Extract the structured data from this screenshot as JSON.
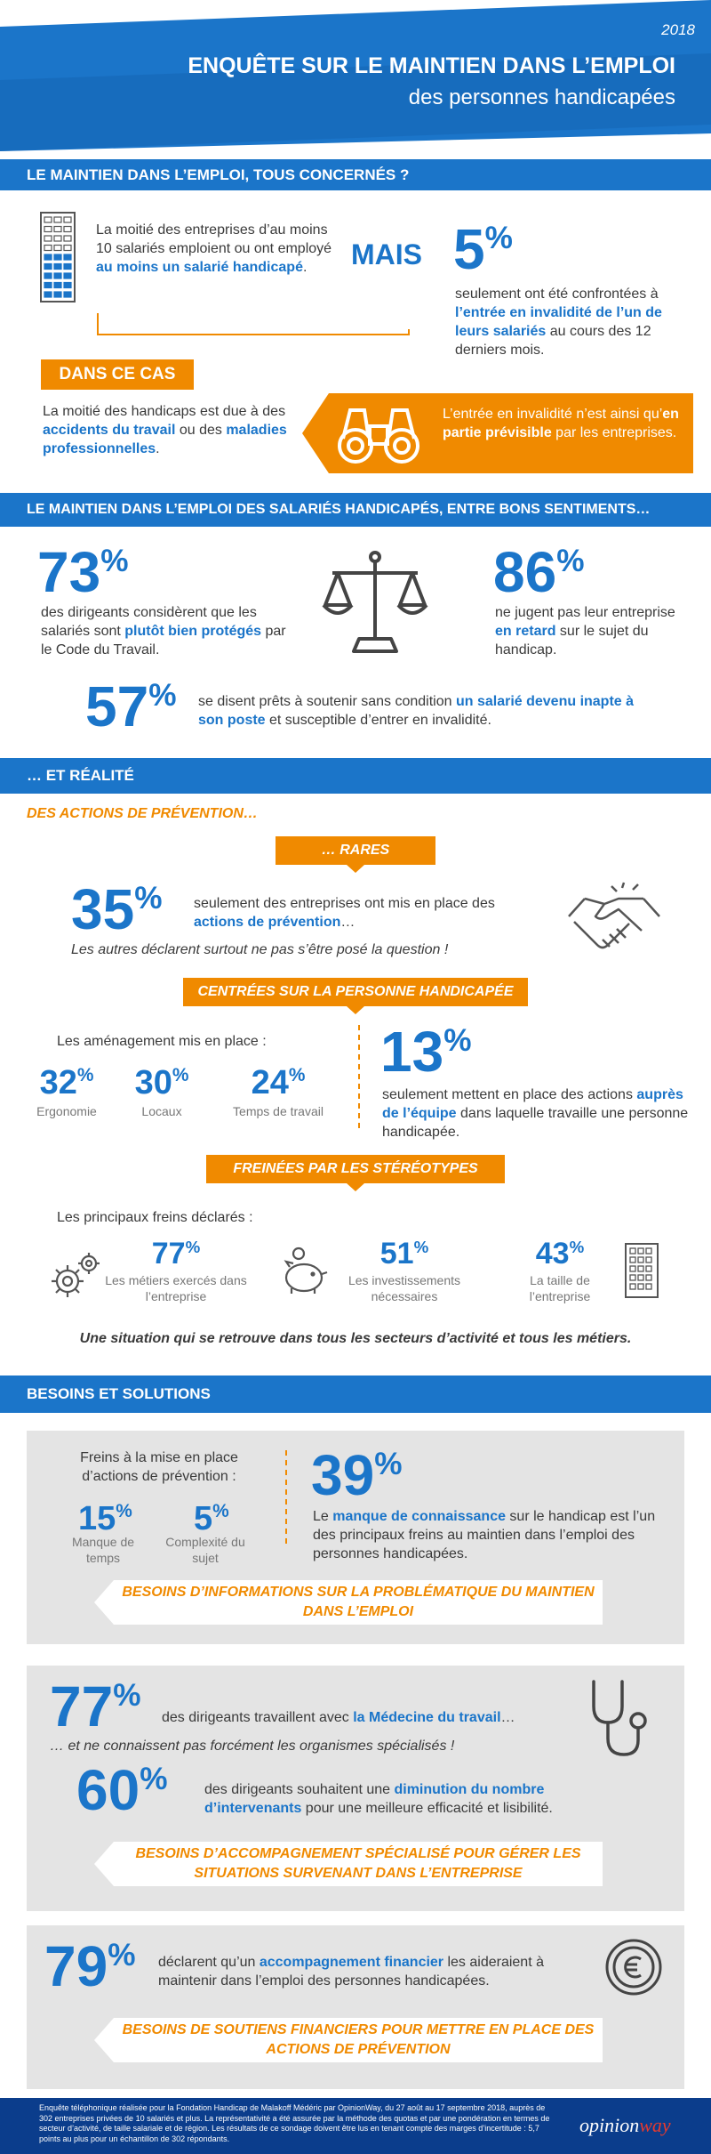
{
  "header": {
    "year": "2018",
    "title_line1": "ENQUÊTE SUR LE MAINTIEN DANS L’EMPLOI",
    "title_line2": "des personnes handicapées"
  },
  "section1": {
    "heading": "LE MAINTIEN DANS L’EMPLOI, TOUS CONCERNÉS ?",
    "stat_left_text1": "La moitié des entreprises d’au moins 10 salariés emploient ou ont employé ",
    "stat_left_highlight": "au moins un salarié handicapé",
    "stat_left_end": ".",
    "mais": "MAIS",
    "pct5": "5",
    "pct5_text1": "seulement ont été confrontées à ",
    "pct5_highlight": "l’entrée en invalidité de l’un de leurs salariés",
    "pct5_text2": " au cours des 12 derniers mois.",
    "dans_ce_cas": "DANS CE CAS",
    "handicap_text1": "La moitié des handicaps est due à des ",
    "handicap_h1": "accidents du travail",
    "handicap_text2": " ou des ",
    "handicap_h2": "maladies professionnelles",
    "handicap_end": ".",
    "orange_text1": "L’entrée en invalidité n’est ainsi qu’",
    "orange_highlight": "en partie prévisible",
    "orange_text2": " par les entreprises."
  },
  "section2": {
    "heading": "LE MAINTIEN DANS L’EMPLOI DES SALARIÉS HANDICAPÉS, ENTRE BONS SENTIMENTS…",
    "pct73": "73",
    "pct73_text1": "des dirigeants considèrent que les salariés sont ",
    "pct73_highlight": "plutôt bien protégés",
    "pct73_text2": " par le Code du Travail.",
    "pct86": "86",
    "pct86_text1": "ne jugent pas leur entreprise ",
    "pct86_highlight": "en retard",
    "pct86_text2": " sur le sujet du handicap.",
    "pct57": "57",
    "pct57_text1": "se disent prêts à soutenir sans condition ",
    "pct57_highlight": "un salarié devenu inapte à son poste",
    "pct57_text2": " et susceptible d’entrer en invalidité."
  },
  "section3": {
    "heading": "… ET RÉALITÉ",
    "subheading": "DES ACTIONS DE PRÉVENTION…",
    "rares": "… RARES",
    "pct35": "35",
    "pct35_text1": "seulement des entreprises ont mis en place des ",
    "pct35_highlight": "actions de prévention",
    "pct35_text2": "…",
    "pct35_note": "Les autres déclarent surtout ne pas s’être posé la question !",
    "centrees": "CENTRÉES SUR LA PERSONNE HANDICAPÉE",
    "amenagements_label": "Les aménagement mis en place :",
    "am": [
      {
        "pct": "32",
        "label": "Ergonomie"
      },
      {
        "pct": "30",
        "label": "Locaux"
      },
      {
        "pct": "24",
        "label": "Temps de travail"
      }
    ],
    "pct13": "13",
    "pct13_text1": "seulement mettent en place des actions ",
    "pct13_highlight": "auprès de l’équipe",
    "pct13_text2": " dans laquelle travaille une personne handicapée.",
    "freinees": "FREINÉES PAR LES STÉRÉOTYPES",
    "freins_label": "Les principaux freins déclarés :",
    "freins": [
      {
        "pct": "77",
        "label": "Les métiers exercés dans l’entreprise"
      },
      {
        "pct": "51",
        "label": "Les investissements nécessaires"
      },
      {
        "pct": "43",
        "label": "La taille de l’entreprise"
      }
    ],
    "conclusion": "Une situation qui se retrouve dans tous les secteurs d’activité et tous les métiers."
  },
  "section4": {
    "heading": "BESOINS ET SOLUTIONS",
    "freins_title": "Freins à la mise en place d’actions de prévention :",
    "f1_pct": "15",
    "f1_label": "Manque de temps",
    "f2_pct": "5",
    "f2_label": "Complexité du sujet",
    "pct39": "39",
    "pct39_text1": "Le ",
    "pct39_highlight": "manque de connaissance",
    "pct39_text2": " sur le handicap est l’un des principaux freins au maintien dans l’emploi des personnes handicapées.",
    "banner1": "BESOINS D’INFORMATIONS SUR LA PROBLÉMATIQUE DU MAINTIEN DANS L’EMPLOI",
    "pct77": "77",
    "pct77_text1": "des dirigeants travaillent avec ",
    "pct77_highlight": "la Médecine du travail",
    "pct77_text2": "…",
    "pct77_note": "… et ne connaissent pas forcément les organismes spécialisés !",
    "pct60": "60",
    "pct60_text1": "des dirigeants souhaitent une ",
    "pct60_highlight": "diminution du nombre d’intervenants",
    "pct60_text2": " pour une meilleure efficacité et lisibilité.",
    "banner2": "BESOINS D’ACCOMPAGNEMENT SPÉCIALISÉ POUR GÉRER LES SITUATIONS SURVENANT DANS L’ENTREPRISE",
    "pct79": "79",
    "pct79_text1": "déclarent qu’un ",
    "pct79_highlight": "accompagnement financier",
    "pct79_text2": " les aideraient à maintenir dans l’emploi des personnes handicapées.",
    "banner3": "BESOINS DE SOUTIENS FINANCIERS POUR METTRE EN PLACE DES ACTIONS DE PRÉVENTION"
  },
  "footer": {
    "text": "Enquête téléphonique réalisée pour la Fondation Handicap de Malakoff Médéric par OpinionWay, du 27 août au 17 septembre 2018, auprès de 302 entreprises privées de 10 salariés et plus. La représentativité a été assurée par la méthode des quotas et par une pondération en termes de secteur d’activité, de taille salariale et de région. Les résultats de ce sondage doivent être lus en tenant compte des marges d’incertitude : 5,7 points au plus pour un échantillon de 302 répondants.",
    "logo_a": "opinion",
    "logo_b": "way"
  },
  "colors": {
    "blue": "#1b75c9",
    "orange": "#f08a00",
    "gray": "#e4e4e4",
    "dark_blue": "#0b3d8c"
  }
}
